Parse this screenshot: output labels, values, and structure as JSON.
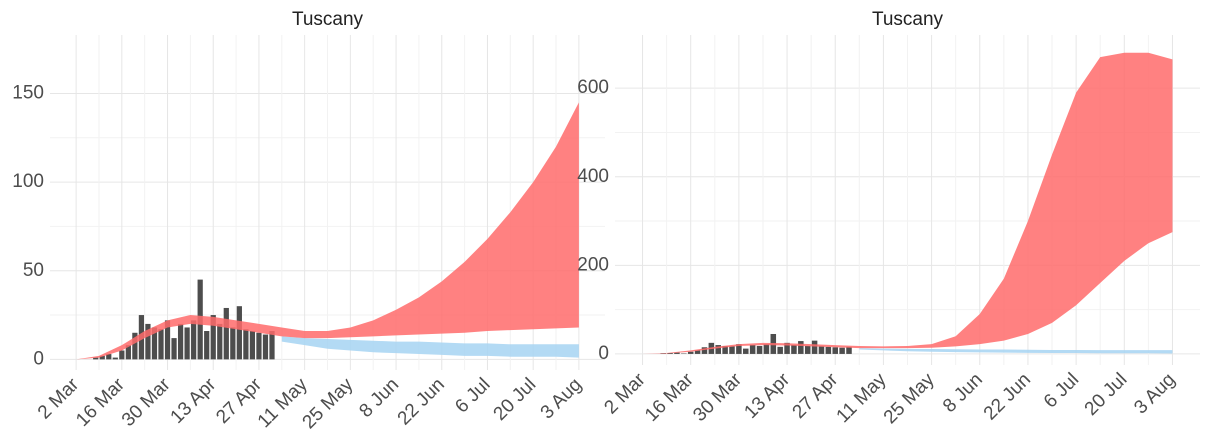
{
  "chart_data": [
    {
      "type": "band_bar",
      "title": "Tuscany",
      "x": [
        "2 Mar",
        "9 Mar",
        "16 Mar",
        "23 Mar",
        "30 Mar",
        "6 Apr",
        "13 Apr",
        "20 Apr",
        "27 Apr",
        "4 May",
        "11 May",
        "18 May",
        "25 May",
        "1 Jun",
        "8 Jun",
        "15 Jun",
        "22 Jun",
        "29 Jun",
        "6 Jul",
        "13 Jul",
        "20 Jul",
        "27 Jul",
        "3 Aug"
      ],
      "bands": [
        {
          "color": "#a6d4f2",
          "lower": [
            null,
            null,
            null,
            null,
            null,
            null,
            null,
            null,
            null,
            10,
            8,
            6,
            5,
            4,
            3.5,
            3,
            2.5,
            2,
            2,
            1.5,
            1.5,
            1.5,
            1
          ],
          "upper": [
            null,
            null,
            null,
            null,
            null,
            null,
            null,
            null,
            null,
            13,
            12,
            11.5,
            11,
            10.5,
            10,
            10,
            9.5,
            9,
            9,
            8.5,
            8.5,
            8.5,
            8.5
          ]
        },
        {
          "color": "#ff6b6b",
          "lower": [
            0,
            1,
            5,
            12,
            18,
            20,
            19,
            17,
            15,
            13,
            12,
            12,
            12.5,
            13,
            13.5,
            14,
            14.5,
            15,
            16,
            16.5,
            17,
            17.5,
            18
          ],
          "upper": [
            0,
            2,
            8,
            16,
            22,
            25,
            24,
            22,
            20,
            18,
            16,
            16,
            18,
            22,
            28,
            35,
            44,
            55,
            68,
            83,
            100,
            120,
            145
          ]
        }
      ],
      "bar_x": [
        "4 Mar",
        "6 Mar",
        "8 Mar",
        "10 Mar",
        "12 Mar",
        "14 Mar",
        "16 Mar",
        "18 Mar",
        "20 Mar",
        "22 Mar",
        "24 Mar",
        "26 Mar",
        "28 Mar",
        "30 Mar",
        "1 Apr",
        "3 Apr",
        "5 Apr",
        "7 Apr",
        "9 Apr",
        "11 Apr",
        "13 Apr",
        "15 Apr",
        "17 Apr",
        "19 Apr",
        "21 Apr",
        "23 Apr",
        "25 Apr",
        "27 Apr",
        "29 Apr",
        "1 May"
      ],
      "bar_values": [
        0,
        0,
        1,
        2,
        3,
        1,
        5,
        8,
        15,
        25,
        20,
        18,
        17,
        22,
        12,
        20,
        18,
        22,
        45,
        16,
        25,
        20,
        29,
        18,
        30,
        17,
        16,
        15,
        14,
        16
      ],
      "bar_color": "#4d4d4d",
      "xlim": [
        "23 Feb",
        "11 Aug"
      ],
      "xticks": [
        "2 Mar",
        "16 Mar",
        "30 Mar",
        "13 Apr",
        "27 Apr",
        "11 May",
        "25 May",
        "8 Jun",
        "22 Jun",
        "6 Jul",
        "20 Jul",
        "3 Aug"
      ],
      "ylim": [
        -6,
        183
      ],
      "yticks": [
        0,
        50,
        100,
        150
      ],
      "grid": true
    },
    {
      "type": "band_bar",
      "title": "Tuscany",
      "x": [
        "2 Mar",
        "9 Mar",
        "16 Mar",
        "23 Mar",
        "30 Mar",
        "6 Apr",
        "13 Apr",
        "20 Apr",
        "27 Apr",
        "4 May",
        "11 May",
        "18 May",
        "25 May",
        "1 Jun",
        "8 Jun",
        "15 Jun",
        "22 Jun",
        "29 Jun",
        "6 Jul",
        "13 Jul",
        "20 Jul",
        "27 Jul",
        "3 Aug"
      ],
      "bands": [
        {
          "color": "#a6d4f2",
          "lower": [
            null,
            null,
            null,
            null,
            null,
            null,
            null,
            null,
            null,
            10,
            8,
            6,
            5,
            4,
            3.5,
            3,
            2.5,
            2,
            2,
            1.5,
            1.5,
            1.5,
            1
          ],
          "upper": [
            null,
            null,
            null,
            null,
            null,
            null,
            null,
            null,
            null,
            13,
            12,
            11.5,
            11,
            10.5,
            10,
            10,
            9.5,
            9,
            9,
            8.5,
            8.5,
            8.5,
            8.5
          ]
        },
        {
          "color": "#ff6b6b",
          "lower": [
            0,
            1,
            5,
            12,
            18,
            20,
            19,
            17,
            15,
            13,
            13,
            13,
            14,
            17,
            22,
            30,
            45,
            70,
            110,
            160,
            210,
            250,
            275
          ],
          "upper": [
            0,
            2,
            8,
            16,
            22,
            25,
            24,
            22,
            20,
            18,
            17,
            18,
            22,
            40,
            90,
            170,
            300,
            450,
            590,
            670,
            680,
            680,
            665
          ]
        }
      ],
      "bar_x": [
        "4 Mar",
        "6 Mar",
        "8 Mar",
        "10 Mar",
        "12 Mar",
        "14 Mar",
        "16 Mar",
        "18 Mar",
        "20 Mar",
        "22 Mar",
        "24 Mar",
        "26 Mar",
        "28 Mar",
        "30 Mar",
        "1 Apr",
        "3 Apr",
        "5 Apr",
        "7 Apr",
        "9 Apr",
        "11 Apr",
        "13 Apr",
        "15 Apr",
        "17 Apr",
        "19 Apr",
        "21 Apr",
        "23 Apr",
        "25 Apr",
        "27 Apr",
        "29 Apr",
        "1 May"
      ],
      "bar_values": [
        0,
        0,
        1,
        2,
        3,
        1,
        5,
        8,
        15,
        25,
        20,
        18,
        17,
        22,
        12,
        20,
        18,
        22,
        45,
        16,
        25,
        20,
        29,
        18,
        30,
        17,
        16,
        15,
        14,
        16
      ],
      "bar_color": "#4d4d4d",
      "xlim": [
        "23 Feb",
        "11 Aug"
      ],
      "xticks": [
        "2 Mar",
        "16 Mar",
        "30 Mar",
        "13 Apr",
        "27 Apr",
        "11 May",
        "25 May",
        "8 Jun",
        "22 Jun",
        "6 Jul",
        "20 Jul",
        "3 Aug"
      ],
      "ylim": [
        -25,
        720
      ],
      "yticks": [
        0,
        200,
        400,
        600
      ],
      "grid": true
    }
  ]
}
